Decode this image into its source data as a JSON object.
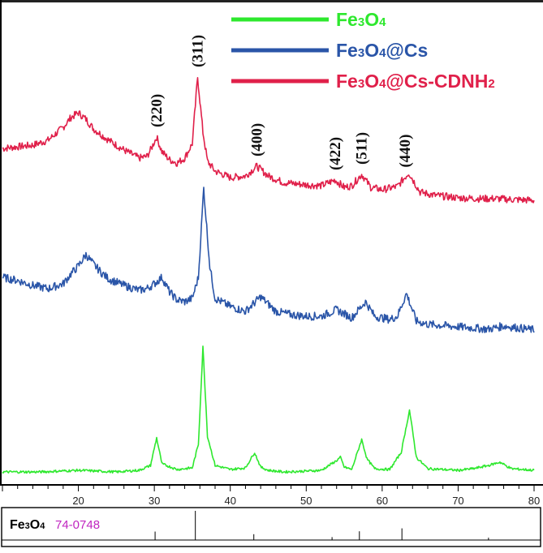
{
  "chart_data": {
    "type": "line",
    "title": "",
    "xlabel": "",
    "ylabel": "",
    "xlim": [
      10,
      80
    ],
    "x_ticks": [
      "20",
      "30",
      "40",
      "50",
      "60",
      "70",
      "80"
    ],
    "legend_placement": "top-right",
    "legend": [
      {
        "name": "Fe3O4",
        "color": "#2ee82e"
      },
      {
        "name": "Fe3O4@Cs",
        "color": "#2a55a8"
      },
      {
        "name": "Fe3O4@Cs-CDNH2",
        "color": "#e0204a"
      }
    ],
    "peak_labels": [
      {
        "label": "(220)",
        "x": 30.3
      },
      {
        "label": "(311)",
        "x": 35.7
      },
      {
        "label": "(400)",
        "x": 43.5
      },
      {
        "label": "(422)",
        "x": 53.8
      },
      {
        "label": "(511)",
        "x": 57.3
      },
      {
        "label": "(440)",
        "x": 63.0
      }
    ],
    "series": [
      {
        "name": "Fe3O4@Cs-CDNH2",
        "color": "#e0204a",
        "baseline": 0.0,
        "x": [
          10,
          12,
          14,
          16,
          17,
          18,
          19,
          20,
          21,
          22,
          24,
          26,
          28,
          29,
          29.5,
          30.3,
          31,
          32,
          33,
          34,
          35,
          35.7,
          36.4,
          37,
          38,
          40,
          42,
          43.5,
          45,
          47,
          50,
          52,
          53.8,
          55,
          56,
          57.3,
          58.5,
          60,
          62,
          63.5,
          65,
          67,
          70,
          73,
          75,
          77,
          80
        ],
        "y": [
          72,
          74,
          76,
          82,
          90,
          98,
          110,
          116,
          108,
          96,
          82,
          70,
          60,
          62,
          70,
          86,
          68,
          58,
          54,
          60,
          78,
          160,
          92,
          56,
          44,
          36,
          38,
          50,
          38,
          30,
          27,
          26,
          33,
          24,
          26,
          40,
          24,
          21,
          25,
          42,
          18,
          14,
          11,
          10,
          10,
          9,
          8
        ]
      },
      {
        "name": "Fe3O4@Cs",
        "color": "#2a55a8",
        "baseline": 0.0,
        "x": [
          10,
          12,
          14,
          16,
          18,
          19,
          20,
          21,
          22,
          23,
          24,
          26,
          28,
          29,
          30,
          31,
          32,
          33,
          34,
          35,
          35.8,
          36.5,
          37.3,
          38,
          40,
          42,
          44,
          46,
          48,
          50,
          52,
          54,
          56,
          57.8,
          59,
          61,
          62,
          63.2,
          64.5,
          66,
          70,
          74,
          76,
          80
        ],
        "y": [
          70,
          66,
          60,
          56,
          62,
          74,
          84,
          98,
          86,
          76,
          68,
          60,
          54,
          56,
          62,
          70,
          52,
          42,
          40,
          44,
          70,
          180,
          84,
          44,
          34,
          28,
          46,
          28,
          24,
          22,
          22,
          30,
          20,
          40,
          22,
          18,
          22,
          50,
          16,
          12,
          9,
          6,
          10,
          5
        ]
      },
      {
        "name": "Fe3O4",
        "color": "#2ee82e",
        "baseline": 0.0,
        "x": [
          10,
          15,
          20,
          25,
          28,
          29.5,
          30.3,
          31,
          33,
          35,
          35.8,
          36.4,
          37,
          38,
          40,
          42,
          43.2,
          44,
          45,
          47,
          50,
          52,
          54,
          54.5,
          55,
          56,
          57.3,
          58,
          59,
          61,
          62.5,
          63.6,
          64.5,
          66,
          70,
          72,
          74,
          75.5,
          77,
          80
        ],
        "y": [
          6,
          6,
          8,
          6,
          8,
          14,
          48,
          16,
          9,
          11,
          40,
          160,
          50,
          14,
          9,
          11,
          30,
          12,
          8,
          6,
          7,
          8,
          20,
          24,
          12,
          9,
          46,
          22,
          10,
          9,
          30,
          82,
          24,
          10,
          8,
          10,
          14,
          18,
          10,
          8
        ]
      }
    ]
  },
  "reference_panel": {
    "phase_label": "Fe",
    "phase_sub1": "3",
    "phase_o": "O",
    "phase_sub2": "4",
    "card_number": "74-0748",
    "sticks": [
      {
        "x": 30.1,
        "intensity": 0.29
      },
      {
        "x": 35.4,
        "intensity": 1.0
      },
      {
        "x": 43.1,
        "intensity": 0.2
      },
      {
        "x": 53.4,
        "intensity": 0.1
      },
      {
        "x": 57.0,
        "intensity": 0.3
      },
      {
        "x": 62.6,
        "intensity": 0.4
      },
      {
        "x": 74.0,
        "intensity": 0.08
      }
    ]
  }
}
